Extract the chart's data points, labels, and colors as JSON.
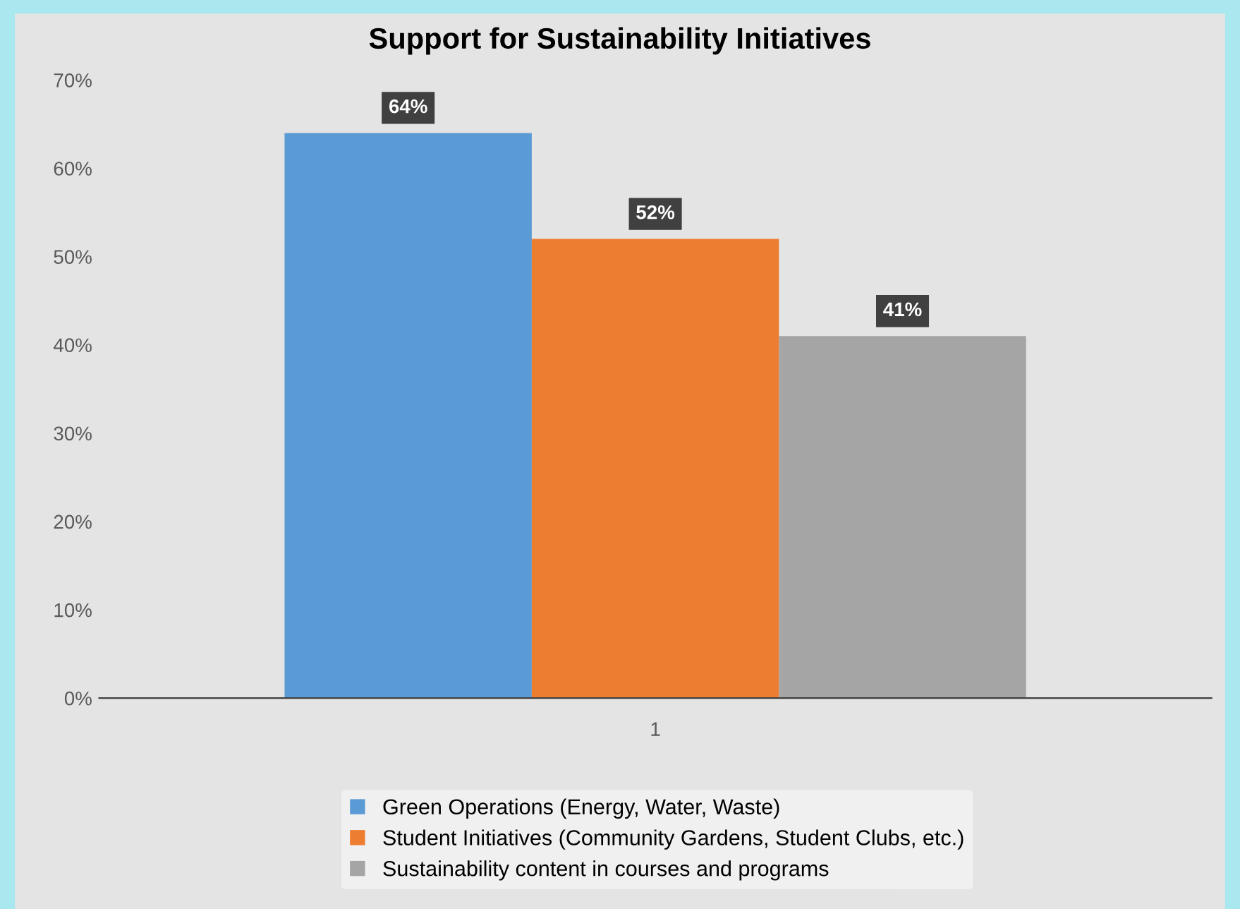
{
  "chart_data": {
    "type": "bar",
    "title": "Support for Sustainability Initiatives",
    "categories": [
      "1"
    ],
    "series": [
      {
        "name": "Green Operations (Energy, Water, Waste)",
        "color": "#5b9bd5",
        "values": [
          64
        ],
        "value_labels": [
          "64%"
        ]
      },
      {
        "name": "Student Initiatives (Community Gardens, Student Clubs, etc.)",
        "color": "#ed7d31",
        "values": [
          52
        ],
        "value_labels": [
          "52%"
        ]
      },
      {
        "name": "Sustainability content in courses and programs",
        "color": "#a5a5a5",
        "values": [
          41
        ],
        "value_labels": [
          "41%"
        ]
      }
    ],
    "ylim": [
      0,
      70
    ],
    "yticks": [
      {
        "value": 0,
        "label": "0%"
      },
      {
        "value": 10,
        "label": "10%"
      },
      {
        "value": 20,
        "label": "20%"
      },
      {
        "value": 30,
        "label": "30%"
      },
      {
        "value": 40,
        "label": "40%"
      },
      {
        "value": 50,
        "label": "50%"
      },
      {
        "value": 60,
        "label": "60%"
      },
      {
        "value": 70,
        "label": "70%"
      }
    ],
    "grid": false,
    "legend": "bottom"
  }
}
